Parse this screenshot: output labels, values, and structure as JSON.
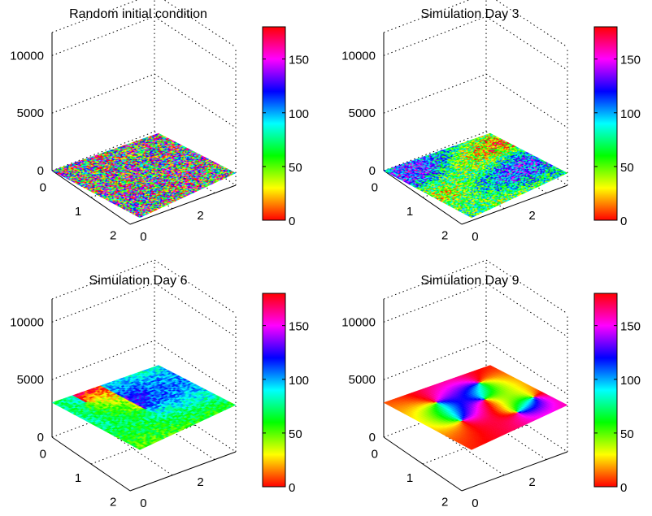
{
  "chart_data": [
    {
      "type": "surface",
      "title": "Random initial condition",
      "pattern": "noise",
      "x_ticks": [
        "0",
        "2"
      ],
      "y_ticks": [
        "0",
        "1",
        "2"
      ],
      "z_ticks": [
        "0",
        "5000",
        "10000"
      ],
      "zlim": [
        0,
        12000
      ],
      "surface_z": 0,
      "colorbar": {
        "ticks": [
          "0",
          "50",
          "100",
          "150"
        ],
        "range": [
          0,
          180
        ],
        "colormap": "hsv"
      }
    },
    {
      "type": "surface",
      "title": "Simulation Day 3",
      "pattern": "speckled-domains",
      "x_ticks": [
        "0",
        "2"
      ],
      "y_ticks": [
        "0",
        "1",
        "2"
      ],
      "z_ticks": [
        "0",
        "5000",
        "10000"
      ],
      "zlim": [
        0,
        12000
      ],
      "surface_z": 0,
      "colorbar": {
        "ticks": [
          "0",
          "50",
          "100",
          "150"
        ],
        "range": [
          0,
          180
        ],
        "colormap": "hsv"
      }
    },
    {
      "type": "surface",
      "title": "Simulation Day 6",
      "pattern": "coarse-domains",
      "x_ticks": [
        "0",
        "2"
      ],
      "y_ticks": [
        "0",
        "1",
        "2"
      ],
      "z_ticks": [
        "0",
        "5000",
        "10000"
      ],
      "zlim": [
        0,
        12000
      ],
      "surface_z": 3000,
      "colorbar": {
        "ticks": [
          "0",
          "50",
          "100",
          "150"
        ],
        "range": [
          0,
          180
        ],
        "colormap": "hsv"
      }
    },
    {
      "type": "surface",
      "title": "Simulation Day 9",
      "pattern": "smooth-pinwheels",
      "x_ticks": [
        "0",
        "2"
      ],
      "y_ticks": [
        "0",
        "1",
        "2"
      ],
      "z_ticks": [
        "0",
        "5000",
        "10000"
      ],
      "zlim": [
        0,
        12000
      ],
      "surface_z": 3000,
      "colorbar": {
        "ticks": [
          "0",
          "50",
          "100",
          "150"
        ],
        "range": [
          0,
          180
        ],
        "colormap": "hsv"
      }
    }
  ]
}
